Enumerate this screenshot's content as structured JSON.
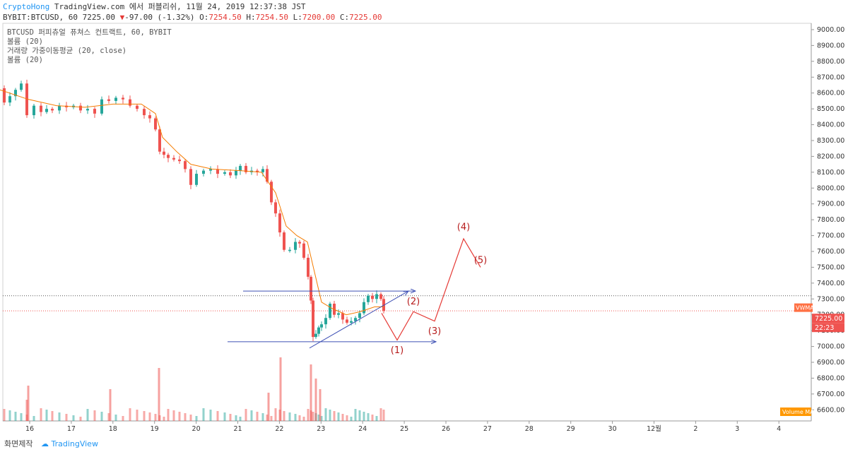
{
  "header": {
    "author": "CryptoHong",
    "published": "TradingView.com 에서 퍼블리쉬, 11월 24, 2019 12:37:38 JST",
    "symbol": "BYBIT:BTCUSD, 60",
    "last": "7225.00",
    "change": "-97.00 (-1.32%)",
    "o_label": "O:",
    "o_value": "7254.50",
    "h_label": "H:",
    "h_value": "7254.50",
    "l_label": "L:",
    "l_value": "7200.00",
    "c_label": "C:",
    "c_value": "7225.00"
  },
  "legend": [
    "BTCUSD 퍼피츄얼 퓨쳐스 컨트랙트, 60, BYBIT",
    "볼륨 (20)",
    "거래량 가중이동평균 (20, close)",
    "볼륨 (20)"
  ],
  "footer": {
    "left": "화면제작",
    "brand": "TradingView"
  },
  "colors": {
    "up": "#26a69a",
    "down": "#ef5350",
    "ma": "#f57c00",
    "annotation": "#e53935",
    "trendline": "#3f51b5",
    "vwma_badge": "#ff7043",
    "price_badge": "#ef5350",
    "volume_ma_badge": "#ff9800"
  },
  "chart_data": {
    "type": "candlestick",
    "x_ticks": [
      "16",
      "17",
      "18",
      "19",
      "20",
      "21",
      "22",
      "23",
      "24",
      "25",
      "26",
      "27",
      "28",
      "29",
      "30",
      "12월",
      "2",
      "3",
      "4"
    ],
    "y_ticks": [
      "9000.00",
      "8900.00",
      "8800.00",
      "8700.00",
      "8600.00",
      "8500.00",
      "8400.00",
      "8300.00",
      "8200.00",
      "8100.00",
      "8000.00",
      "7900.00",
      "7800.00",
      "7700.00",
      "7600.00",
      "7500.00",
      "7400.00",
      "7300.00",
      "7200.00",
      "7100.00",
      "7000.00",
      "6900.00",
      "6800.00",
      "6700.00",
      "6600.00"
    ],
    "ylim": [
      6530,
      9040
    ],
    "price_path": [
      [
        0,
        8630
      ],
      [
        6,
        8540
      ],
      [
        14,
        8580
      ],
      [
        22,
        8620
      ],
      [
        30,
        8660
      ],
      [
        38,
        8460
      ],
      [
        48,
        8520
      ],
      [
        58,
        8480
      ],
      [
        66,
        8500
      ],
      [
        74,
        8490
      ],
      [
        84,
        8520
      ],
      [
        94,
        8510
      ],
      [
        104,
        8520
      ],
      [
        114,
        8490
      ],
      [
        124,
        8500
      ],
      [
        134,
        8470
      ],
      [
        144,
        8560
      ],
      [
        154,
        8550
      ],
      [
        164,
        8570
      ],
      [
        174,
        8560
      ],
      [
        184,
        8520
      ],
      [
        194,
        8500
      ],
      [
        204,
        8460
      ],
      [
        212,
        8440
      ],
      [
        220,
        8370
      ],
      [
        226,
        8230
      ],
      [
        232,
        8210
      ],
      [
        238,
        8190
      ],
      [
        246,
        8180
      ],
      [
        254,
        8170
      ],
      [
        262,
        8120
      ],
      [
        270,
        8020
      ],
      [
        278,
        8090
      ],
      [
        288,
        8110
      ],
      [
        298,
        8120
      ],
      [
        308,
        8090
      ],
      [
        318,
        8100
      ],
      [
        326,
        8080
      ],
      [
        334,
        8110
      ],
      [
        340,
        8140
      ],
      [
        348,
        8100
      ],
      [
        356,
        8110
      ],
      [
        364,
        8100
      ],
      [
        372,
        8120
      ],
      [
        378,
        8040
      ],
      [
        384,
        7910
      ],
      [
        390,
        7840
      ],
      [
        396,
        7720
      ],
      [
        402,
        7610
      ],
      [
        410,
        7610
      ],
      [
        418,
        7660
      ],
      [
        424,
        7650
      ],
      [
        430,
        7560
      ],
      [
        436,
        7440
      ],
      [
        440,
        7290
      ],
      [
        443,
        7060
      ],
      [
        447,
        7080
      ],
      [
        451,
        7120
      ],
      [
        455,
        7140
      ],
      [
        461,
        7180
      ],
      [
        467,
        7270
      ],
      [
        473,
        7200
      ],
      [
        479,
        7210
      ],
      [
        485,
        7170
      ],
      [
        491,
        7150
      ],
      [
        497,
        7160
      ],
      [
        503,
        7180
      ],
      [
        509,
        7210
      ],
      [
        515,
        7280
      ],
      [
        521,
        7320
      ],
      [
        527,
        7300
      ],
      [
        533,
        7330
      ],
      [
        539,
        7300
      ],
      [
        543,
        7225
      ]
    ],
    "ma_path": [
      [
        0,
        8620
      ],
      [
        40,
        8560
      ],
      [
        80,
        8520
      ],
      [
        120,
        8510
      ],
      [
        160,
        8530
      ],
      [
        200,
        8530
      ],
      [
        220,
        8470
      ],
      [
        230,
        8320
      ],
      [
        250,
        8230
      ],
      [
        270,
        8150
      ],
      [
        300,
        8120
      ],
      [
        340,
        8110
      ],
      [
        370,
        8100
      ],
      [
        390,
        7970
      ],
      [
        405,
        7760
      ],
      [
        420,
        7700
      ],
      [
        435,
        7660
      ],
      [
        445,
        7470
      ],
      [
        455,
        7280
      ],
      [
        470,
        7240
      ],
      [
        490,
        7200
      ],
      [
        510,
        7220
      ],
      [
        530,
        7250
      ],
      [
        543,
        7250
      ]
    ],
    "volume_spikes": [
      [
        38,
        30
      ],
      [
        40,
        50
      ],
      [
        156,
        45
      ],
      [
        225,
        75
      ],
      [
        380,
        40
      ],
      [
        397,
        90
      ],
      [
        440,
        80
      ],
      [
        447,
        60
      ],
      [
        453,
        45
      ]
    ],
    "annotations": [
      {
        "label": "(1)",
        "x": 562,
        "y": 7030
      },
      {
        "label": "(2)",
        "x": 585,
        "y": 7230
      },
      {
        "label": "(3)",
        "x": 615,
        "y": 7150
      },
      {
        "label": "(4)",
        "x": 656,
        "y": 7700
      },
      {
        "label": "(5)",
        "x": 680,
        "y": 7490
      }
    ],
    "projection": [
      [
        540,
        7210
      ],
      [
        562,
        7040
      ],
      [
        585,
        7220
      ],
      [
        615,
        7160
      ],
      [
        656,
        7680
      ],
      [
        680,
        7500
      ]
    ],
    "trendlines": [
      {
        "from": [
          344,
          7350
        ],
        "to": [
          588,
          7350
        ],
        "arrow": true
      },
      {
        "from": [
          322,
          7030
        ],
        "to": [
          617,
          7030
        ],
        "arrow": true
      },
      {
        "from": [
          438,
          6990
        ],
        "to": [
          578,
          7350
        ],
        "arrow": true
      }
    ],
    "dotted_levels": [
      7320,
      7225
    ],
    "badges": {
      "vwma": "VWMA",
      "price": "7225.00",
      "timer": "22:23",
      "volume_ma": "Volume MA"
    }
  }
}
